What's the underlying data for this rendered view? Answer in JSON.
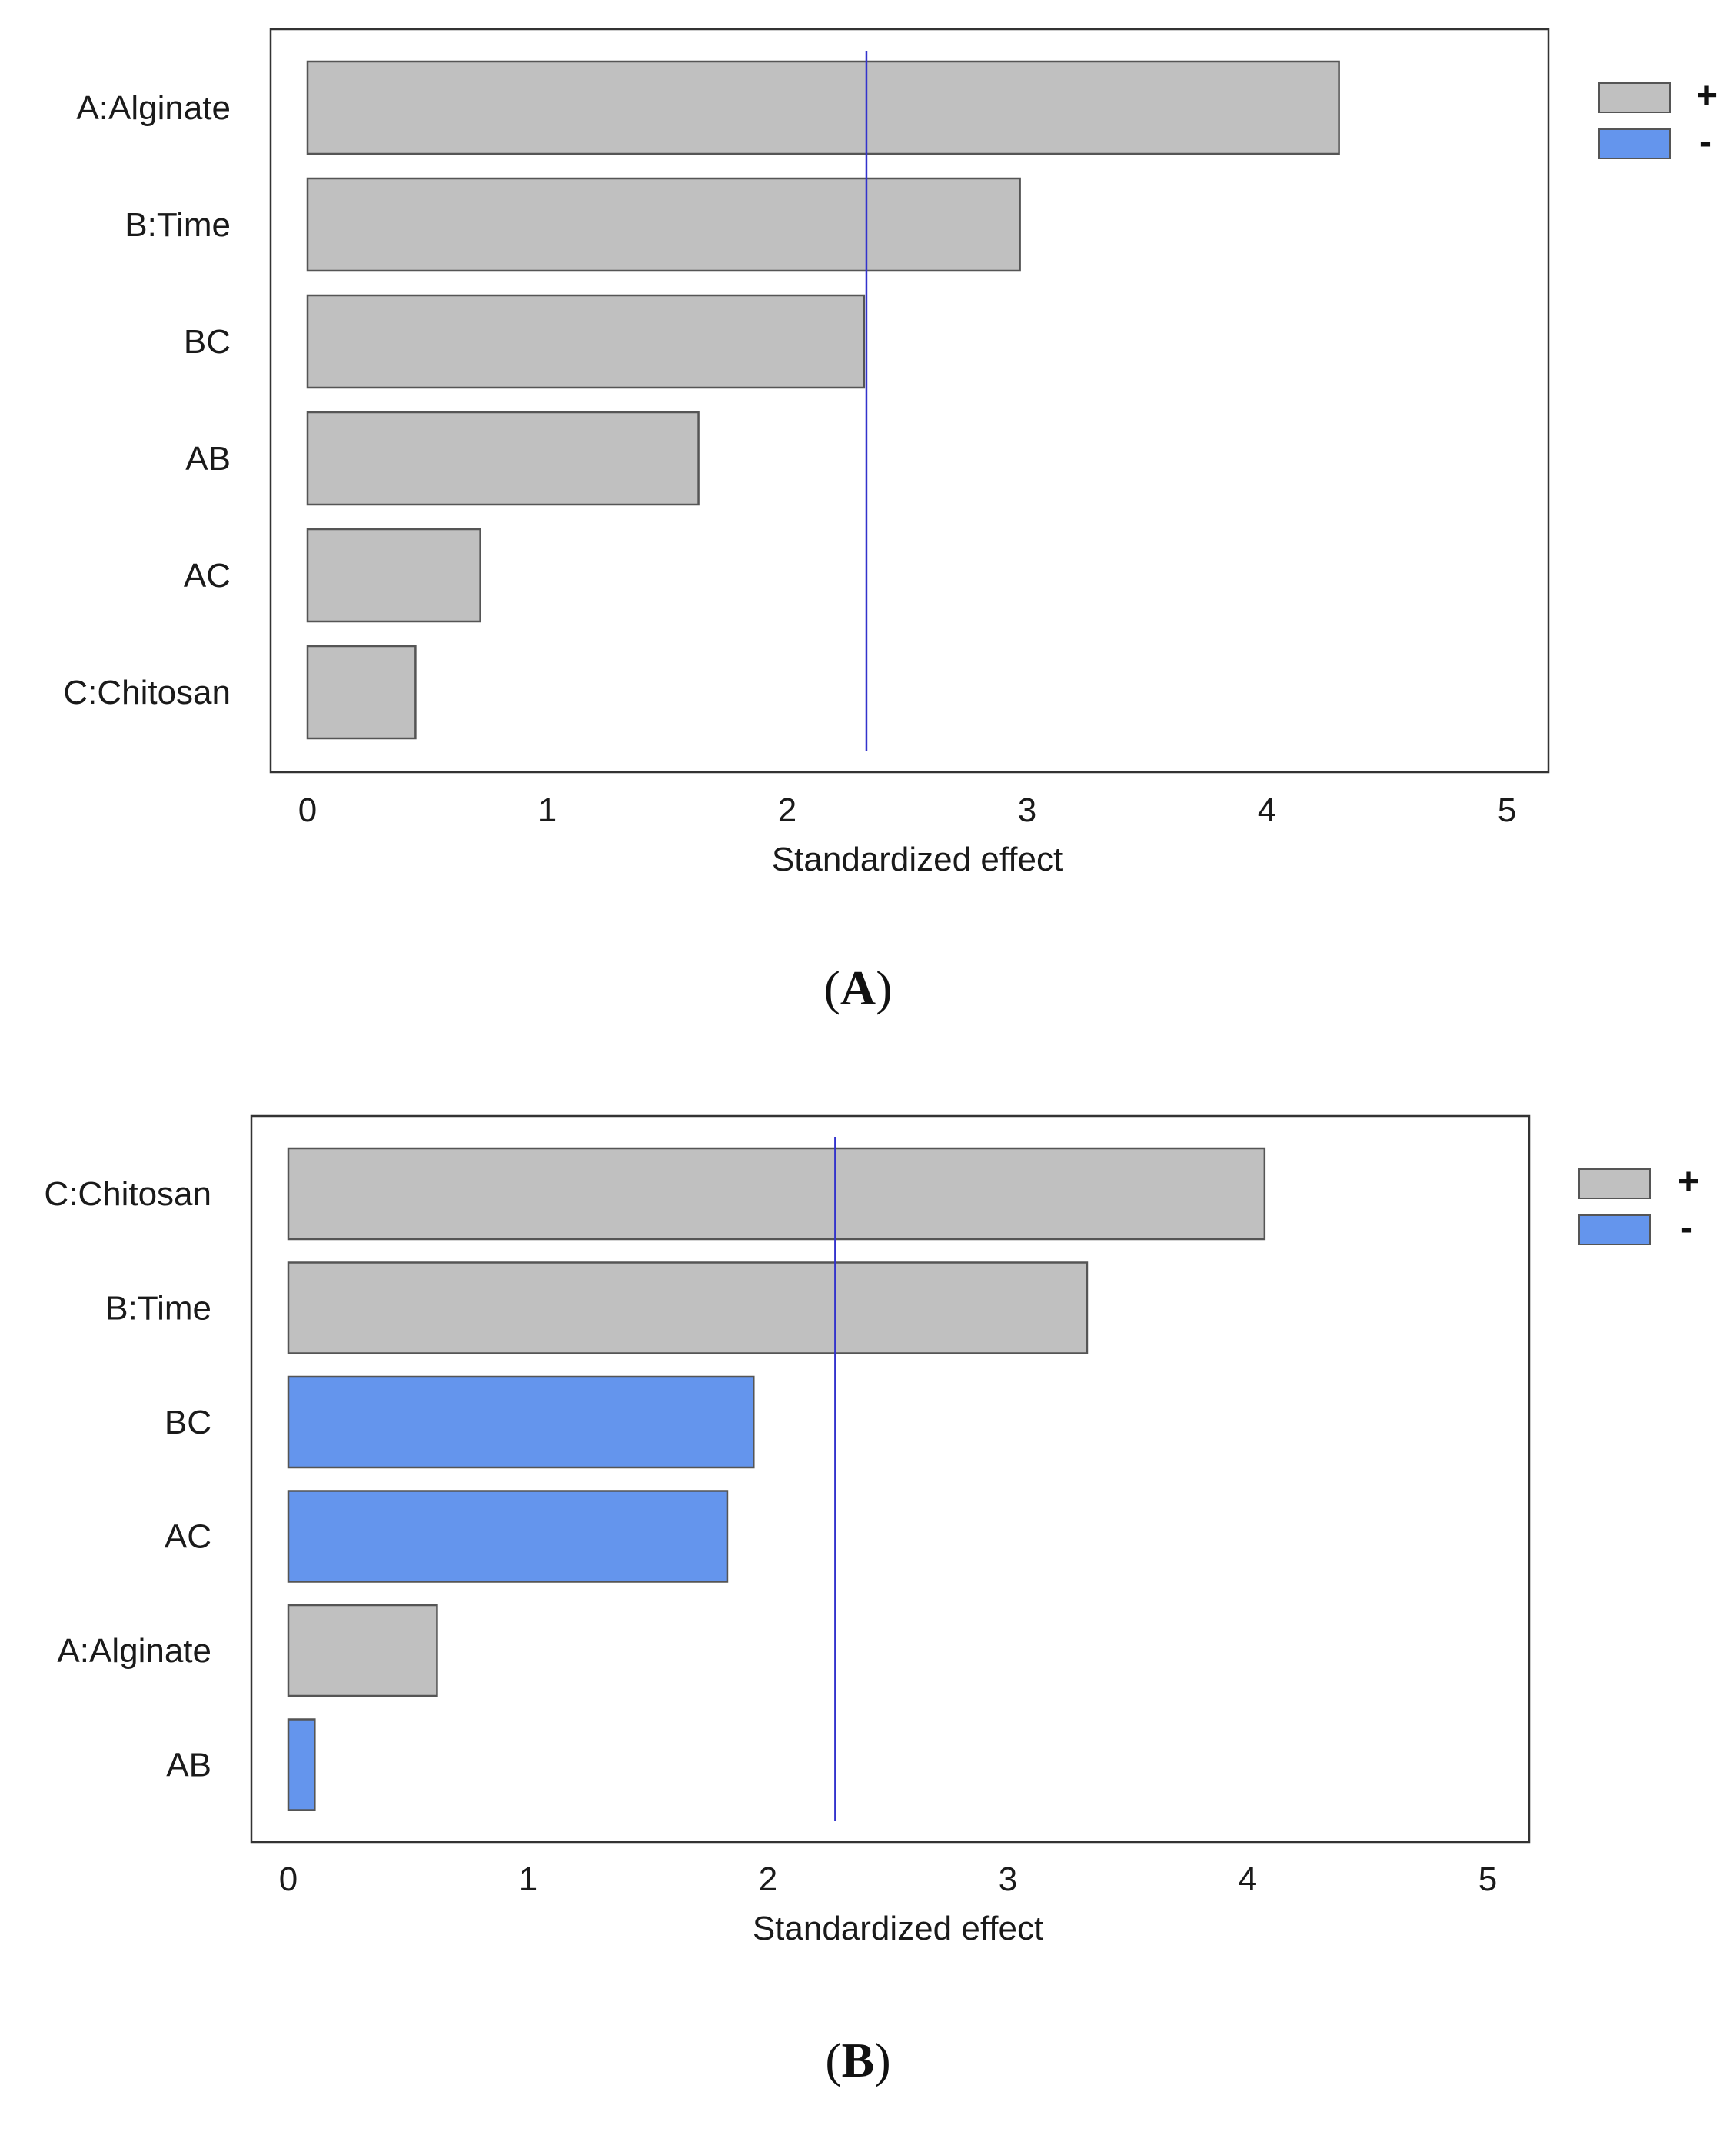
{
  "colors": {
    "positive": "#c0c0c0",
    "negative": "#6495ed",
    "reference_line": "#3333cc",
    "bar_stroke": "#555555",
    "frame_stroke": "#333333"
  },
  "chart_data": [
    {
      "panel": "A",
      "type": "bar",
      "orientation": "horizontal",
      "xlabel": "Standardized effect",
      "xlim": [
        0,
        5
      ],
      "xticks": [
        0,
        1,
        2,
        3,
        4,
        5
      ],
      "reference_line": 2.33,
      "legend": {
        "position": "top-right",
        "positive_label": "+",
        "negative_label": "-"
      },
      "bars": [
        {
          "category": "A:Alginate",
          "value": 4.3,
          "sign": "+"
        },
        {
          "category": "B:Time",
          "value": 2.97,
          "sign": "+"
        },
        {
          "category": "BC",
          "value": 2.32,
          "sign": "+"
        },
        {
          "category": "AB",
          "value": 1.63,
          "sign": "+"
        },
        {
          "category": "AC",
          "value": 0.72,
          "sign": "+"
        },
        {
          "category": "C:Chitosan",
          "value": 0.45,
          "sign": "+"
        }
      ],
      "caption": {
        "open": "(",
        "letter": "A",
        "close": ")"
      }
    },
    {
      "panel": "B",
      "type": "bar",
      "orientation": "horizontal",
      "xlabel": "Standardized effect",
      "xlim": [
        0,
        5
      ],
      "xticks": [
        0,
        1,
        2,
        3,
        4,
        5
      ],
      "reference_line": 2.28,
      "legend": {
        "position": "top-right",
        "positive_label": "+",
        "negative_label": "-"
      },
      "bars": [
        {
          "category": "C:Chitosan",
          "value": 4.07,
          "sign": "+"
        },
        {
          "category": "B:Time",
          "value": 3.33,
          "sign": "+"
        },
        {
          "category": "BC",
          "value": 1.94,
          "sign": "-"
        },
        {
          "category": "AC",
          "value": 1.83,
          "sign": "-"
        },
        {
          "category": "A:Alginate",
          "value": 0.62,
          "sign": "+"
        },
        {
          "category": "AB",
          "value": 0.11,
          "sign": "-"
        }
      ],
      "caption": {
        "open": "(",
        "letter": "B",
        "close": ")"
      }
    }
  ]
}
